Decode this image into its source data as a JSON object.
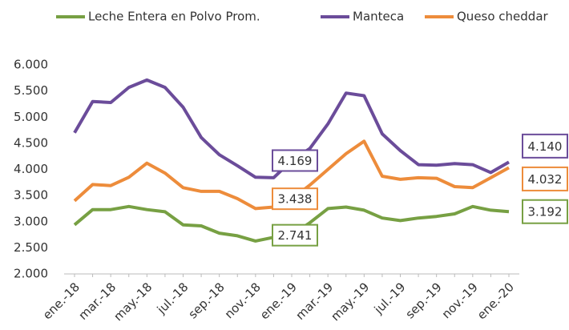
{
  "chart_data": {
    "type": "line",
    "categories": [
      "ene.-18",
      null,
      "mar.-18",
      null,
      "may.-18",
      null,
      "jul.-18",
      null,
      "sep.-18",
      null,
      "nov.-18",
      null,
      "ene.-19",
      null,
      "mar.-19",
      null,
      "may.-19",
      null,
      "jul.-19",
      null,
      "sep.-19",
      null,
      "nov.-19",
      null,
      "ene.-20"
    ],
    "series": [
      {
        "name": "Leche Entera en Polvo Prom.",
        "color": "#77a043",
        "values": [
          2940,
          3230,
          3230,
          3290,
          3230,
          3190,
          2940,
          2920,
          2780,
          2730,
          2630,
          2700,
          2741,
          2980,
          3250,
          3280,
          3220,
          3070,
          3020,
          3070,
          3100,
          3150,
          3290,
          3220,
          3192
        ],
        "value_labels": [
          null,
          null,
          null,
          null,
          null,
          null,
          null,
          null,
          null,
          null,
          null,
          null,
          "2.741",
          null,
          null,
          null,
          null,
          null,
          null,
          null,
          null,
          null,
          null,
          null,
          "3.192"
        ]
      },
      {
        "name": "Manteca",
        "color": "#6b4c9a",
        "values": [
          4700,
          5300,
          5280,
          5570,
          5710,
          5570,
          5190,
          4610,
          4280,
          4070,
          3850,
          3840,
          4169,
          4400,
          4870,
          5460,
          5410,
          4680,
          4360,
          4090,
          4080,
          4110,
          4090,
          3940,
          4140
        ],
        "value_labels": [
          null,
          null,
          null,
          null,
          null,
          null,
          null,
          null,
          null,
          null,
          null,
          null,
          "4.169",
          null,
          null,
          null,
          null,
          null,
          null,
          null,
          null,
          null,
          null,
          null,
          "4.140"
        ]
      },
      {
        "name": "Queso cheddar",
        "color": "#ed8c3b",
        "values": [
          3400,
          3710,
          3690,
          3850,
          4120,
          3930,
          3650,
          3580,
          3580,
          3440,
          3250,
          3280,
          3438,
          3700,
          4000,
          4300,
          4540,
          3870,
          3810,
          3840,
          3830,
          3670,
          3650,
          3840,
          4032
        ],
        "value_labels": [
          null,
          null,
          null,
          null,
          null,
          null,
          null,
          null,
          null,
          null,
          null,
          null,
          "3.438",
          null,
          null,
          null,
          null,
          null,
          null,
          null,
          null,
          null,
          null,
          null,
          "4.032"
        ]
      }
    ],
    "ylim": [
      2000,
      6000
    ],
    "yticks": [
      {
        "value": 2000,
        "label": "2.000"
      },
      {
        "value": 2500,
        "label": "2.500"
      },
      {
        "value": 3000,
        "label": "3.000"
      },
      {
        "value": 3500,
        "label": "3.500"
      },
      {
        "value": 4000,
        "label": "4.000"
      },
      {
        "value": 4500,
        "label": "4.500"
      },
      {
        "value": 5000,
        "label": "5.000"
      },
      {
        "value": 5500,
        "label": "5.500"
      },
      {
        "value": 6000,
        "label": "6.000"
      }
    ],
    "legend": "top",
    "grid": false
  }
}
